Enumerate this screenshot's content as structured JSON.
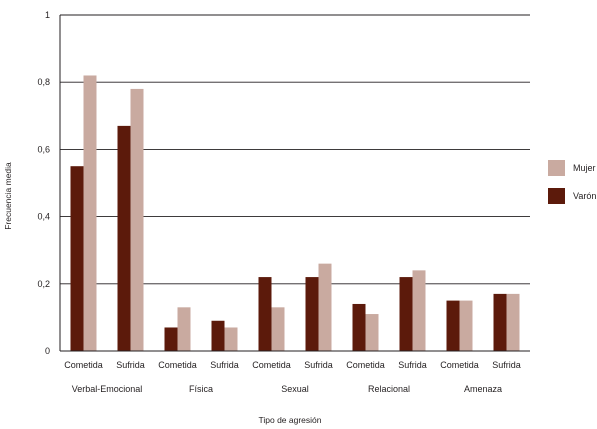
{
  "chart_data": {
    "type": "bar",
    "title": "",
    "xlabel": "Tipo de agresión",
    "ylabel": "Frecuencia media",
    "ylim": [
      0,
      1
    ],
    "yticks": [
      {
        "value": 0,
        "label": "0"
      },
      {
        "value": 0.2,
        "label": "0,2"
      },
      {
        "value": 0.4,
        "label": "0,4"
      },
      {
        "value": 0.6,
        "label": "0,6"
      },
      {
        "value": 0.8,
        "label": "0,8"
      },
      {
        "value": 1,
        "label": "1"
      }
    ],
    "grid": true,
    "legend_position": "right",
    "groups": [
      "Verbal-Emocional",
      "Física",
      "Sexual",
      "Relacional",
      "Amenaza"
    ],
    "categories": [
      "Cometida",
      "Sufrida",
      "Cometida",
      "Sufrida",
      "Cometida",
      "Sufrida",
      "Cometida",
      "Sufrida",
      "Cometida",
      "Sufrida"
    ],
    "series": [
      {
        "name": "Varón",
        "color": "#5c1a0b",
        "values": [
          0.55,
          0.67,
          0.07,
          0.09,
          0.22,
          0.22,
          0.14,
          0.22,
          0.15,
          0.17
        ]
      },
      {
        "name": "Mujer",
        "color": "#c9aaa0",
        "values": [
          0.82,
          0.78,
          0.13,
          0.07,
          0.13,
          0.26,
          0.11,
          0.24,
          0.15,
          0.17
        ]
      }
    ],
    "legend": [
      {
        "name": "Mujer",
        "color": "#c9aaa0"
      },
      {
        "name": "Varón",
        "color": "#5c1a0b"
      }
    ]
  }
}
